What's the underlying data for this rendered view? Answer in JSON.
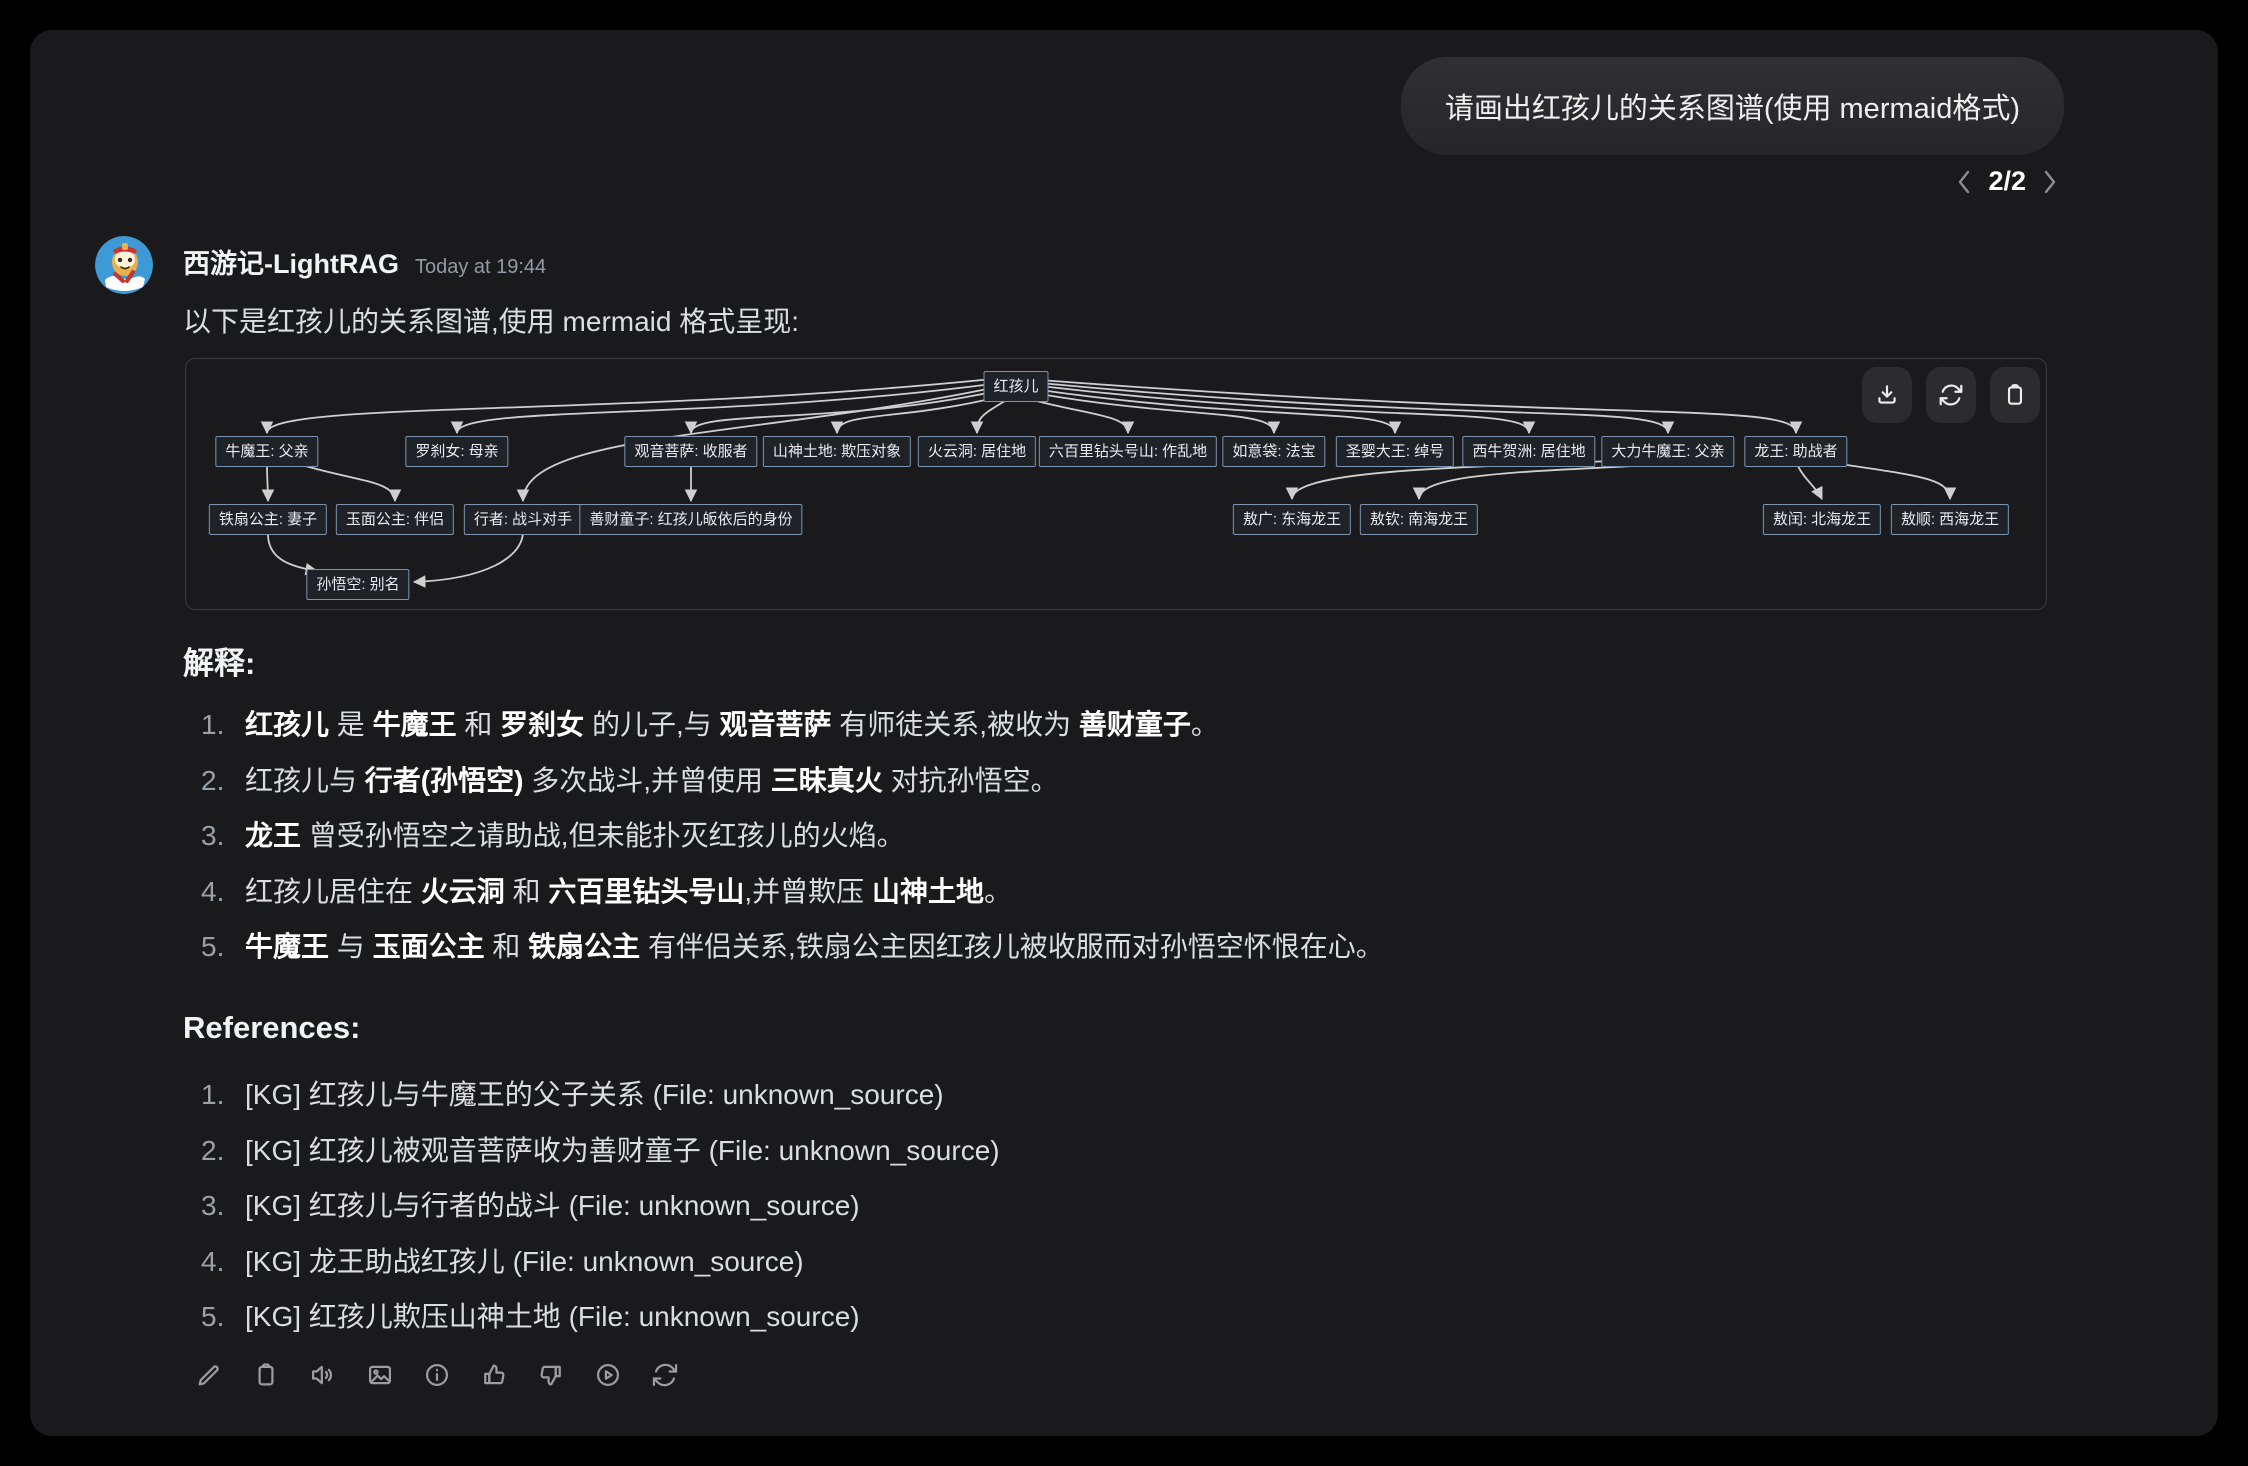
{
  "user_message": {
    "text": "请画出红孩儿的关系图谱(使用 mermaid格式)"
  },
  "pagination": {
    "current": "2/2",
    "prev_icon": "chevron-left-icon",
    "next_icon": "chevron-right-icon"
  },
  "bot": {
    "name": "西游记-LightRAG",
    "timestamp": "Today at 19:44",
    "avatar": "monkey-king-avatar",
    "intro": "以下是红孩儿的关系图谱,使用 mermaid 格式呈现:"
  },
  "diagram": {
    "toolbar_icons": [
      "download-icon",
      "refresh-icon",
      "clipboard-icon"
    ],
    "nodes": [
      "红孩儿",
      "牛魔王: 父亲",
      "罗刹女: 母亲",
      "观音菩萨: 收服者",
      "山神土地: 欺压对象",
      "火云洞: 居住地",
      "六百里钻头号山: 作乱地",
      "如意袋: 法宝",
      "圣婴大王: 绰号",
      "西牛贺洲: 居住地",
      "大力牛魔王: 父亲",
      "龙王: 助战者",
      "铁扇公主: 妻子",
      "玉面公主: 伴侣",
      "行者: 战斗对手",
      "善财童子: 红孩儿皈依后的身份",
      "敖广: 东海龙王",
      "敖钦: 南海龙王",
      "敖闰: 北海龙王",
      "敖顺: 西海龙王",
      "孙悟空: 别名"
    ],
    "edges": [
      {
        "from": "红孩儿",
        "to": "牛魔王: 父亲"
      },
      {
        "from": "红孩儿",
        "to": "罗刹女: 母亲"
      },
      {
        "from": "红孩儿",
        "to": "行者: 战斗对手"
      },
      {
        "from": "红孩儿",
        "to": "观音菩萨: 收服者"
      },
      {
        "from": "红孩儿",
        "to": "山神土地: 欺压对象"
      },
      {
        "from": "红孩儿",
        "to": "火云洞: 居住地"
      },
      {
        "from": "红孩儿",
        "to": "六百里钻头号山: 作乱地"
      },
      {
        "from": "红孩儿",
        "to": "如意袋: 法宝"
      },
      {
        "from": "红孩儿",
        "to": "圣婴大王: 绰号"
      },
      {
        "from": "红孩儿",
        "to": "西牛贺洲: 居住地"
      },
      {
        "from": "红孩儿",
        "to": "大力牛魔王: 父亲"
      },
      {
        "from": "红孩儿",
        "to": "龙王: 助战者"
      },
      {
        "from": "牛魔王: 父亲",
        "to": "铁扇公主: 妻子"
      },
      {
        "from": "牛魔王: 父亲",
        "to": "玉面公主: 伴侣"
      },
      {
        "from": "观音菩萨: 收服者",
        "to": "善财童子: 红孩儿皈依后的身份"
      },
      {
        "from": "铁扇公主: 妻子",
        "to": "孙悟空: 别名"
      },
      {
        "from": "行者: 战斗对手",
        "to": "孙悟空: 别名"
      },
      {
        "from": "龙王: 助战者",
        "to": "敖广: 东海龙王"
      },
      {
        "from": "龙王: 助战者",
        "to": "敖钦: 南海龙王"
      },
      {
        "from": "龙王: 助战者",
        "to": "敖闰: 北海龙王"
      },
      {
        "from": "龙王: 助战者",
        "to": "敖顺: 西海龙王"
      }
    ]
  },
  "explanation": {
    "heading": "解释:",
    "items": [
      [
        {
          "t": "红孩儿",
          "b": true
        },
        {
          "t": " 是 "
        },
        {
          "t": "牛魔王",
          "b": true
        },
        {
          "t": " 和 "
        },
        {
          "t": "罗刹女",
          "b": true
        },
        {
          "t": " 的儿子,与 "
        },
        {
          "t": "观音菩萨",
          "b": true
        },
        {
          "t": " 有师徒关系,被收为 "
        },
        {
          "t": "善财童子",
          "b": true
        },
        {
          "t": "。"
        }
      ],
      [
        {
          "t": "红孩儿与 "
        },
        {
          "t": "行者(孙悟空)",
          "b": true
        },
        {
          "t": " 多次战斗,并曾使用 "
        },
        {
          "t": "三昧真火",
          "b": true
        },
        {
          "t": " 对抗孙悟空。"
        }
      ],
      [
        {
          "t": "龙王",
          "b": true
        },
        {
          "t": " 曾受孙悟空之请助战,但未能扑灭红孩儿的火焰。"
        }
      ],
      [
        {
          "t": "红孩儿居住在 "
        },
        {
          "t": "火云洞",
          "b": true
        },
        {
          "t": " 和 "
        },
        {
          "t": "六百里钻头号山",
          "b": true
        },
        {
          "t": ",并曾欺压 "
        },
        {
          "t": "山神土地",
          "b": true
        },
        {
          "t": "。"
        }
      ],
      [
        {
          "t": "牛魔王",
          "b": true
        },
        {
          "t": " 与 "
        },
        {
          "t": "玉面公主",
          "b": true
        },
        {
          "t": " 和 "
        },
        {
          "t": "铁扇公主",
          "b": true
        },
        {
          "t": " 有伴侣关系,铁扇公主因红孩儿被收服而对孙悟空怀恨在心。"
        }
      ]
    ]
  },
  "references": {
    "heading": "References:",
    "items": [
      "[KG] 红孩儿与牛魔王的父子关系 (File: unknown_source)",
      "[KG] 红孩儿被观音菩萨收为善财童子 (File: unknown_source)",
      "[KG] 红孩儿与行者的战斗 (File: unknown_source)",
      "[KG] 龙王助战红孩儿 (File: unknown_source)",
      "[KG] 红孩儿欺压山神土地 (File: unknown_source)"
    ]
  },
  "message_toolbar_icons": [
    "edit-icon",
    "copy-icon",
    "speak-icon",
    "image-icon",
    "info-icon",
    "thumbs-up-icon",
    "thumbs-down-icon",
    "play-icon",
    "regenerate-icon"
  ],
  "colors": {
    "panel_bg": "#1a1a1c",
    "node_border": "#7d93ae",
    "edge": "#cfcfcf",
    "avatar_bg": "#3d9ad6"
  }
}
